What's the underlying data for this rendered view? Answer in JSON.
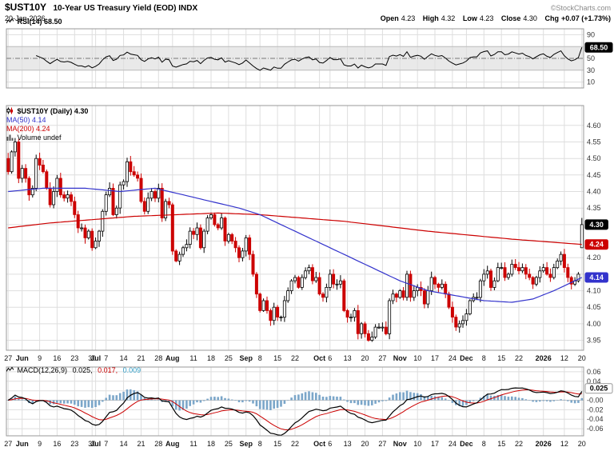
{
  "header": {
    "symbol": "$UST10Y",
    "title": "10-Year US Treasury Yield (EOD) INDX",
    "date": "20-Jan-2026",
    "copyright": "©StockCharts.com",
    "quote": [
      {
        "k": "Open",
        "v": "4.23"
      },
      {
        "k": "High",
        "v": "4.32"
      },
      {
        "k": "Low",
        "v": "4.23"
      },
      {
        "k": "Close",
        "v": "4.30"
      },
      {
        "k": "Chg",
        "v": "+0.07 (+1.73%)"
      }
    ]
  },
  "legends": {
    "rsi": "RSI(14) 68.50",
    "price_main": "$UST10Y (Daily) 4.30",
    "ma50": "MA(50) 4.14",
    "ma200": "MA(200) 4.24",
    "volume": "Volume undef",
    "macd_name": "MACD(12,26,9)",
    "macd_v1": "0.025,",
    "macd_v2": "0.017,",
    "macd_v3": "0.009"
  },
  "colors": {
    "up": "#000000",
    "down": "#cc0000",
    "ma50": "#3333cc",
    "ma200": "#cc0000",
    "rsi_line": "#000000",
    "macd_line": "#000000",
    "macd_signal": "#cc0000",
    "macd_hist": "#7ba6c9",
    "macd_hist_text": "#33a0c9",
    "grid": "#dedede",
    "border": "#999999",
    "band": "#e9e9e9",
    "band_edge": "#bbbbbb",
    "axis_text": "#333333"
  },
  "chart_data": {
    "type": "candlestick",
    "symbol": "$UST10Y",
    "timeframe": "Daily",
    "n_points": 165,
    "x_ticks": [
      {
        "label": "27",
        "i": 0,
        "bold": false
      },
      {
        "label": "Jun",
        "i": 4,
        "bold": true
      },
      {
        "label": "9",
        "i": 9,
        "bold": false
      },
      {
        "label": "16",
        "i": 14,
        "bold": false
      },
      {
        "label": "23",
        "i": 19,
        "bold": false
      },
      {
        "label": "30",
        "i": 24,
        "bold": false
      },
      {
        "label": "Jul",
        "i": 25,
        "bold": true
      },
      {
        "label": "7",
        "i": 28,
        "bold": false
      },
      {
        "label": "14",
        "i": 33,
        "bold": false
      },
      {
        "label": "21",
        "i": 38,
        "bold": false
      },
      {
        "label": "28",
        "i": 43,
        "bold": false
      },
      {
        "label": "Aug",
        "i": 47,
        "bold": true
      },
      {
        "label": "11",
        "i": 53,
        "bold": false
      },
      {
        "label": "18",
        "i": 58,
        "bold": false
      },
      {
        "label": "25",
        "i": 63,
        "bold": false
      },
      {
        "label": "Sep",
        "i": 68,
        "bold": true
      },
      {
        "label": "8",
        "i": 72,
        "bold": false
      },
      {
        "label": "15",
        "i": 77,
        "bold": false
      },
      {
        "label": "22",
        "i": 82,
        "bold": false
      },
      {
        "label": "Oct",
        "i": 89,
        "bold": true
      },
      {
        "label": "6",
        "i": 92,
        "bold": false
      },
      {
        "label": "13",
        "i": 97,
        "bold": false
      },
      {
        "label": "20",
        "i": 102,
        "bold": false
      },
      {
        "label": "27",
        "i": 107,
        "bold": false
      },
      {
        "label": "Nov",
        "i": 112,
        "bold": true
      },
      {
        "label": "10",
        "i": 117,
        "bold": false
      },
      {
        "label": "17",
        "i": 122,
        "bold": false
      },
      {
        "label": "24",
        "i": 127,
        "bold": false
      },
      {
        "label": "Dec",
        "i": 131,
        "bold": true
      },
      {
        "label": "8",
        "i": 136,
        "bold": false
      },
      {
        "label": "15",
        "i": 141,
        "bold": false
      },
      {
        "label": "22",
        "i": 146,
        "bold": false
      },
      {
        "label": "2026",
        "i": 153,
        "bold": true
      },
      {
        "label": "12",
        "i": 159,
        "bold": false
      },
      {
        "label": "20",
        "i": 164,
        "bold": false
      }
    ],
    "price_panel": {
      "ylim_draw": [
        3.92,
        4.66
      ],
      "y_ticks": [
        {
          "v": 4.6,
          "label": "4.60"
        },
        {
          "v": 4.55,
          "label": "4.55"
        },
        {
          "v": 4.5,
          "label": "4.50"
        },
        {
          "v": 4.45,
          "label": "4.45"
        },
        {
          "v": 4.4,
          "label": "4.40"
        },
        {
          "v": 4.35,
          "label": "4.35"
        },
        {
          "v": 4.3,
          "label": null
        },
        {
          "v": 4.25,
          "label": null
        },
        {
          "v": 4.2,
          "label": "4.20"
        },
        {
          "v": 4.15,
          "label": null
        },
        {
          "v": 4.1,
          "label": "4.10"
        },
        {
          "v": 4.05,
          "label": "4.05"
        },
        {
          "v": 4.0,
          "label": "4.00"
        },
        {
          "v": 3.95,
          "label": "3.95"
        }
      ],
      "closes": [
        4.46,
        4.52,
        4.55,
        4.44,
        4.47,
        4.44,
        4.39,
        4.41,
        4.5,
        4.48,
        4.46,
        4.41,
        4.36,
        4.4,
        4.44,
        4.39,
        4.38,
        4.39,
        4.37,
        4.33,
        4.29,
        4.29,
        4.26,
        4.28,
        4.23,
        4.25,
        4.28,
        4.34,
        4.39,
        4.41,
        4.33,
        4.35,
        4.42,
        4.43,
        4.49,
        4.46,
        4.45,
        4.44,
        4.37,
        4.34,
        4.38,
        4.4,
        4.38,
        4.41,
        4.32,
        4.37,
        4.36,
        4.22,
        4.19,
        4.21,
        4.23,
        4.24,
        4.28,
        4.27,
        4.29,
        4.23,
        4.28,
        4.32,
        4.33,
        4.3,
        4.29,
        4.32,
        4.25,
        4.27,
        4.25,
        4.23,
        4.2,
        4.22,
        4.26,
        4.21,
        4.15,
        4.09,
        4.04,
        4.07,
        4.04,
        4.01,
        4.05,
        4.02,
        4.02,
        4.07,
        4.1,
        4.13,
        4.14,
        4.11,
        4.14,
        4.16,
        4.17,
        4.13,
        4.14,
        4.09,
        4.08,
        4.11,
        4.15,
        4.12,
        4.12,
        4.13,
        4.04,
        4.02,
        4.02,
        4.04,
        3.97,
        4.0,
        3.97,
        3.95,
        3.96,
        3.99,
        3.99,
        3.99,
        3.97,
        4.07,
        4.09,
        4.08,
        4.1,
        4.08,
        4.15,
        4.08,
        4.1,
        4.11,
        4.1,
        4.06,
        4.1,
        4.14,
        4.12,
        4.11,
        4.12,
        4.09,
        4.05,
        4.02,
        3.99,
        4.0,
        4.01,
        4.03,
        4.07,
        4.08,
        4.08,
        4.13,
        4.15,
        4.16,
        4.11,
        4.13,
        4.17,
        4.17,
        4.14,
        4.15,
        4.18,
        4.17,
        4.16,
        4.17,
        4.15,
        4.14,
        4.12,
        4.14,
        4.16,
        4.17,
        4.15,
        4.14,
        4.17,
        4.19,
        4.21,
        4.17,
        4.14,
        4.12,
        4.13,
        4.15,
        4.3
      ],
      "last_candle": {
        "open": 4.23,
        "high": 4.32,
        "low": 4.23,
        "close": 4.3
      },
      "ma50_waypoints": [
        [
          0,
          4.4
        ],
        [
          10,
          4.41
        ],
        [
          22,
          4.41
        ],
        [
          32,
          4.4
        ],
        [
          42,
          4.41
        ],
        [
          50,
          4.39
        ],
        [
          58,
          4.37
        ],
        [
          66,
          4.35
        ],
        [
          72,
          4.33
        ],
        [
          80,
          4.29
        ],
        [
          88,
          4.25
        ],
        [
          96,
          4.21
        ],
        [
          104,
          4.17
        ],
        [
          112,
          4.13
        ],
        [
          120,
          4.1
        ],
        [
          128,
          4.085
        ],
        [
          136,
          4.07
        ],
        [
          144,
          4.065
        ],
        [
          150,
          4.075
        ],
        [
          156,
          4.1
        ],
        [
          160,
          4.12
        ],
        [
          164,
          4.14
        ]
      ],
      "ma200_waypoints": [
        [
          0,
          4.29
        ],
        [
          12,
          4.305
        ],
        [
          24,
          4.315
        ],
        [
          36,
          4.325
        ],
        [
          48,
          4.33
        ],
        [
          60,
          4.335
        ],
        [
          72,
          4.33
        ],
        [
          84,
          4.32
        ],
        [
          96,
          4.31
        ],
        [
          108,
          4.295
        ],
        [
          120,
          4.28
        ],
        [
          132,
          4.268
        ],
        [
          144,
          4.256
        ],
        [
          154,
          4.248
        ],
        [
          164,
          4.24
        ]
      ],
      "ma50_last": 4.14,
      "ma200_last": 4.24,
      "badges": [
        {
          "v": 4.3,
          "text": "4.30",
          "bg": "#000000",
          "fg": "#ffffff"
        },
        {
          "v": 4.24,
          "text": "4.24",
          "bg": "#cc0000",
          "fg": "#ffffff"
        },
        {
          "v": 4.14,
          "text": "4.14",
          "bg": "#3333cc",
          "fg": "#ffffff"
        }
      ]
    },
    "rsi_panel": {
      "period": 14,
      "last": 68.5,
      "ylim_draw": [
        0,
        100
      ],
      "band": [
        30,
        70
      ],
      "midline": 50,
      "y_ticks": [
        {
          "v": 90,
          "label": "90"
        },
        {
          "v": 70,
          "label": null
        },
        {
          "v": 50,
          "label": "50"
        },
        {
          "v": 30,
          "label": "30"
        },
        {
          "v": 10,
          "label": "10"
        }
      ],
      "badge": {
        "v": 68.5,
        "text": "68.50",
        "bg": "#000000",
        "fg": "#ffffff"
      }
    },
    "macd_panel": {
      "fast": 12,
      "slow": 26,
      "signal_period": 9,
      "last_macd": 0.025,
      "last_signal": 0.017,
      "last_hist": 0.009,
      "ylim_draw": [
        -0.075,
        0.07
      ],
      "y_ticks": [
        {
          "v": 0.06,
          "label": "0.06"
        },
        {
          "v": 0.04,
          "label": "0.04"
        },
        {
          "v": 0.02,
          "label": "0.02"
        },
        {
          "v": 0,
          "label": "-0.00"
        },
        {
          "v": -0.02,
          "label": "-0.02"
        },
        {
          "v": -0.04,
          "label": "-0.04"
        },
        {
          "v": -0.06,
          "label": "-0.06"
        }
      ],
      "badge": {
        "v": 0.025,
        "text": "0.025",
        "bg": "#ffffff",
        "fg": "#000000",
        "border": "#999999"
      }
    }
  }
}
